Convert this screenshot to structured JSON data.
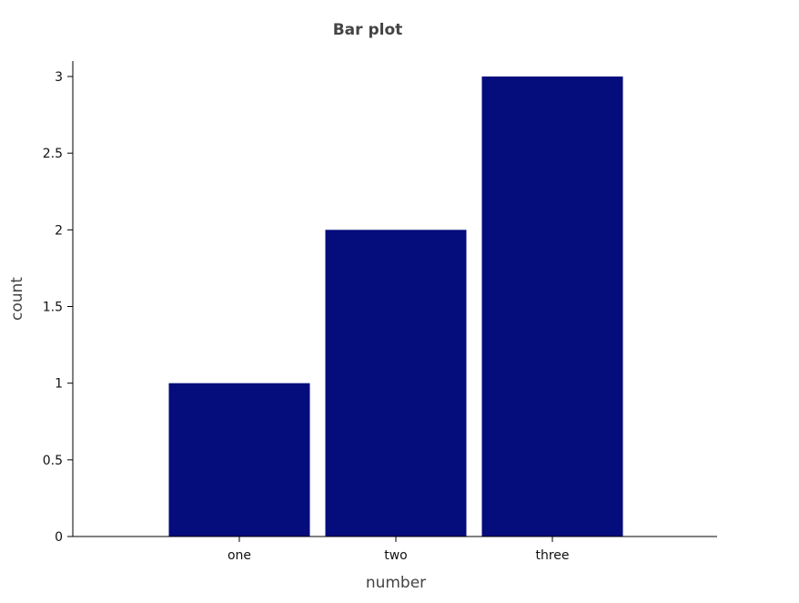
{
  "chart_data": {
    "type": "bar",
    "title": "Bar plot",
    "xlabel": "number",
    "ylabel": "count",
    "categories": [
      "one",
      "two",
      "three"
    ],
    "values": [
      1,
      2,
      3
    ],
    "ylim": [
      0,
      3
    ],
    "yticks": [
      "0",
      "0.5",
      "1",
      "1.5",
      "2",
      "2.5",
      "3"
    ],
    "bar_color": "#050c7c",
    "grid": false,
    "legend": "none"
  }
}
